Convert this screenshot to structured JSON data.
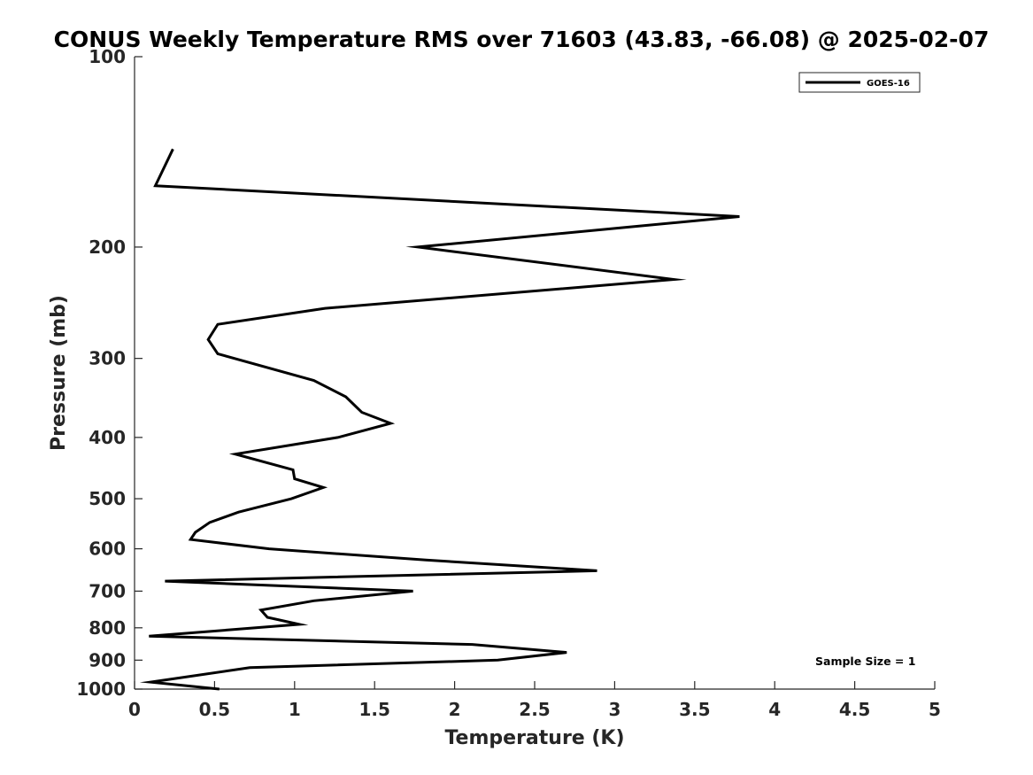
{
  "chart_data": {
    "type": "line",
    "title": "CONUS Weekly Temperature RMS over 71603 (43.83, -66.08) @ 2025-02-07",
    "xlabel": "Temperature (K)",
    "ylabel": "Pressure (mb)",
    "xlim": [
      0,
      5
    ],
    "ylim": [
      100,
      1000
    ],
    "y_scale": "log",
    "y_reversed": true,
    "grid": false,
    "x_ticks": [
      0,
      0.5,
      1,
      1.5,
      2,
      2.5,
      3,
      3.5,
      4,
      4.5,
      5
    ],
    "x_tick_labels": [
      "0",
      "0.5",
      "1",
      "1.5",
      "2",
      "2.5",
      "3",
      "3.5",
      "4",
      "4.5",
      "5"
    ],
    "y_ticks": [
      100,
      200,
      300,
      400,
      500,
      600,
      700,
      800,
      900,
      1000
    ],
    "y_tick_labels": [
      "100",
      "200",
      "300",
      "400",
      "500",
      "600",
      "700",
      "800",
      "900",
      "1000"
    ],
    "legend_position": "top-right",
    "annotation": "Sample Size = 1",
    "series": [
      {
        "name": "GOES-16",
        "color": "#000000",
        "x": [
          0.24,
          0.13,
          3.78,
          1.77,
          3.37,
          1.19,
          0.52,
          0.46,
          0.52,
          1.12,
          1.32,
          1.42,
          1.6,
          1.27,
          0.63,
          0.99,
          1.0,
          1.18,
          0.98,
          0.65,
          0.47,
          0.38,
          0.35,
          0.84,
          1.82,
          2.89,
          0.19,
          1.74,
          1.12,
          0.79,
          0.83,
          1.03,
          0.09,
          2.11,
          2.7,
          2.27,
          0.72,
          0.1,
          0.53
        ],
        "y": [
          140,
          160,
          179,
          200,
          225,
          250,
          265,
          280,
          295,
          325,
          345,
          365,
          380,
          400,
          425,
          450,
          465,
          480,
          500,
          525,
          545,
          565,
          580,
          600,
          625,
          650,
          675,
          700,
          725,
          750,
          770,
          790,
          825,
          850,
          875,
          900,
          925,
          975,
          1000
        ]
      }
    ]
  }
}
